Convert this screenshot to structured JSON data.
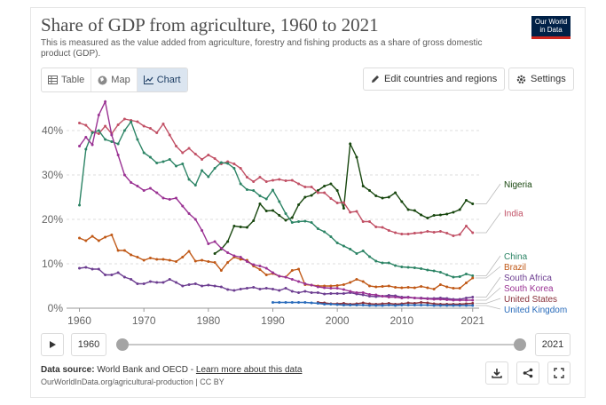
{
  "header": {
    "title": "Share of GDP from agriculture, 1960 to 2021",
    "subtitle": "This is measured as the value added from agriculture, forestry and fishing products as a share of gross domestic product (GDP).",
    "logo_line1": "Our World",
    "logo_line2": "in Data"
  },
  "tabs": [
    {
      "label": "Table",
      "icon": "table-icon"
    },
    {
      "label": "Map",
      "icon": "globe-icon"
    },
    {
      "label": "Chart",
      "icon": "line-chart-icon",
      "active": true
    }
  ],
  "buttons": {
    "edit_countries": "Edit countries and regions",
    "settings": "Settings"
  },
  "timeline": {
    "start_year": "1960",
    "end_year": "2021",
    "start_fraction": 0,
    "end_fraction": 1
  },
  "footer": {
    "source_label": "Data source:",
    "source_text": "World Bank and OECD",
    "separator": " - ",
    "learn_more": "Learn more about this data",
    "url_line": "OurWorldInData.org/agricultural-production | CC BY"
  },
  "colors": {
    "Nigeria": "#18470f",
    "India": "#c15065",
    "China": "#2c8465",
    "Brazil": "#c05917",
    "South Africa": "#6d3e91",
    "South Korea": "#9a3293",
    "United States": "#883039",
    "United Kingdom": "#286bbb"
  },
  "chart_data": {
    "type": "line",
    "title": "Share of GDP from agriculture, 1960 to 2021",
    "xlabel": "",
    "ylabel": "",
    "xlim": [
      1958,
      2022
    ],
    "ylim": [
      0,
      40
    ],
    "x_ticks": [
      1960,
      1970,
      1980,
      1990,
      2000,
      2010,
      2021
    ],
    "y_ticks": [
      0,
      10,
      20,
      30,
      40
    ],
    "y_tick_labels": [
      "0%",
      "10%",
      "20%",
      "30%",
      "40%"
    ],
    "grid": "horizontal dashed",
    "series": [
      {
        "name": "Nigeria",
        "label": "Nigeria",
        "x": [
          1981,
          1982,
          1983,
          1984,
          1985,
          1986,
          1987,
          1988,
          1989,
          1990,
          1991,
          1992,
          1993,
          1994,
          1995,
          1996,
          1997,
          1998,
          1999,
          2000,
          2001,
          2002,
          2003,
          2004,
          2005,
          2006,
          2007,
          2008,
          2009,
          2010,
          2011,
          2012,
          2013,
          2014,
          2015,
          2016,
          2017,
          2018,
          2019,
          2020,
          2021
        ],
        "values": [
          12.3,
          13.3,
          15.0,
          18.5,
          18.3,
          18.2,
          19.7,
          23.5,
          21.9,
          22.0,
          20.9,
          19.8,
          20.4,
          23.3,
          25.0,
          25.4,
          26.5,
          27.5,
          28.0,
          26.5,
          22.5,
          37.0,
          34.0,
          27.5,
          26.5,
          25.3,
          24.8,
          25.0,
          26.0,
          24.0,
          22.2,
          22.0,
          21.0,
          20.3,
          20.9,
          21.0,
          21.2,
          21.6,
          22.2,
          24.3,
          23.5
        ]
      },
      {
        "name": "India",
        "label": "India",
        "x": [
          1960,
          1961,
          1962,
          1963,
          1964,
          1965,
          1966,
          1967,
          1968,
          1969,
          1970,
          1971,
          1972,
          1973,
          1974,
          1975,
          1976,
          1977,
          1978,
          1979,
          1980,
          1981,
          1982,
          1983,
          1984,
          1985,
          1986,
          1987,
          1988,
          1989,
          1990,
          1991,
          1992,
          1993,
          1994,
          1995,
          1996,
          1997,
          1998,
          1999,
          2000,
          2001,
          2002,
          2003,
          2004,
          2005,
          2006,
          2007,
          2008,
          2009,
          2010,
          2011,
          2012,
          2013,
          2014,
          2015,
          2016,
          2017,
          2018,
          2019,
          2020,
          2021
        ],
        "values": [
          41.7,
          41.2,
          39.7,
          39.3,
          41.0,
          39.3,
          41.3,
          42.6,
          42.3,
          42.0,
          41.0,
          40.5,
          39.5,
          41.5,
          39.0,
          36.5,
          35.0,
          36.0,
          34.7,
          33.5,
          34.5,
          33.7,
          32.5,
          33.0,
          32.5,
          31.5,
          29.5,
          28.5,
          29.5,
          28.5,
          28.8,
          29.0,
          28.7,
          28.8,
          28.0,
          27.3,
          27.3,
          26.0,
          26.0,
          24.7,
          23.7,
          23.8,
          21.6,
          21.8,
          19.5,
          19.5,
          18.3,
          18.2,
          17.5,
          17.0,
          16.7,
          16.7,
          16.9,
          17.0,
          17.3,
          17.1,
          17.3,
          16.9,
          16.3,
          16.6,
          18.5,
          17.0
        ]
      },
      {
        "name": "China",
        "label": "China",
        "x": [
          1960,
          1961,
          1962,
          1963,
          1964,
          1965,
          1966,
          1967,
          1968,
          1969,
          1970,
          1971,
          1972,
          1973,
          1974,
          1975,
          1976,
          1977,
          1978,
          1979,
          1980,
          1981,
          1982,
          1983,
          1984,
          1985,
          1986,
          1987,
          1988,
          1989,
          1990,
          1991,
          1992,
          1993,
          1994,
          1995,
          1996,
          1997,
          1998,
          1999,
          2000,
          2001,
          2002,
          2003,
          2004,
          2005,
          2006,
          2007,
          2008,
          2009,
          2010,
          2011,
          2012,
          2013,
          2014,
          2015,
          2016,
          2017,
          2018,
          2019,
          2020,
          2021
        ],
        "values": [
          23.2,
          35.8,
          39.5,
          40.0,
          38.0,
          37.5,
          37.0,
          40.0,
          42.0,
          38.0,
          35.0,
          34.0,
          32.7,
          33.0,
          33.5,
          32.0,
          32.5,
          29.0,
          27.7,
          31.0,
          29.6,
          31.5,
          32.8,
          32.6,
          31.5,
          28.0,
          26.7,
          26.5,
          25.3,
          24.6,
          26.6,
          24.0,
          21.3,
          19.3,
          19.5,
          19.6,
          19.3,
          17.9,
          17.2,
          16.1,
          14.7,
          14.0,
          13.3,
          12.3,
          12.9,
          11.6,
          10.6,
          10.2,
          10.2,
          9.6,
          9.3,
          9.2,
          9.1,
          8.9,
          8.6,
          8.4,
          8.1,
          7.5,
          7.0,
          7.1,
          7.7,
          7.3
        ]
      },
      {
        "name": "Brazil",
        "label": "Brazil",
        "x": [
          1960,
          1961,
          1962,
          1963,
          1964,
          1965,
          1966,
          1967,
          1968,
          1969,
          1970,
          1971,
          1972,
          1973,
          1974,
          1975,
          1976,
          1977,
          1978,
          1979,
          1980,
          1981,
          1982,
          1983,
          1984,
          1985,
          1986,
          1987,
          1988,
          1989,
          1990,
          1991,
          1992,
          1993,
          1994,
          1995,
          1996,
          1997,
          1998,
          1999,
          2000,
          2001,
          2002,
          2003,
          2004,
          2005,
          2006,
          2007,
          2008,
          2009,
          2010,
          2011,
          2012,
          2013,
          2014,
          2015,
          2016,
          2017,
          2018,
          2019,
          2020,
          2021
        ],
        "values": [
          15.8,
          15.2,
          16.2,
          15.2,
          16.0,
          16.5,
          13.0,
          13.0,
          12.0,
          11.5,
          10.8,
          11.3,
          11.0,
          11.0,
          10.8,
          10.5,
          11.5,
          12.8,
          10.6,
          10.8,
          10.5,
          10.3,
          8.5,
          10.3,
          11.5,
          11.0,
          10.8,
          9.5,
          8.7,
          7.5,
          7.8,
          7.2,
          7.0,
          8.5,
          8.8,
          5.3,
          5.2,
          5.0,
          5.0,
          5.0,
          5.1,
          5.3,
          5.8,
          6.5,
          6.0,
          5.0,
          4.8,
          4.9,
          5.0,
          4.7,
          4.6,
          4.7,
          4.6,
          4.9,
          4.6,
          4.3,
          5.3,
          4.8,
          4.5,
          4.5,
          5.7,
          6.8
        ]
      },
      {
        "name": "South Africa",
        "label": "South Africa",
        "x": [
          1960,
          1961,
          1962,
          1963,
          1964,
          1965,
          1966,
          1967,
          1968,
          1969,
          1970,
          1971,
          1972,
          1973,
          1974,
          1975,
          1976,
          1977,
          1978,
          1979,
          1980,
          1981,
          1982,
          1983,
          1984,
          1985,
          1986,
          1987,
          1988,
          1989,
          1990,
          1991,
          1992,
          1993,
          1994,
          1995,
          1996,
          1997,
          1998,
          1999,
          2000,
          2001,
          2002,
          2003,
          2004,
          2005,
          2006,
          2007,
          2008,
          2009,
          2010,
          2011,
          2012,
          2013,
          2014,
          2015,
          2016,
          2017,
          2018,
          2019,
          2020,
          2021
        ],
        "values": [
          9.0,
          9.2,
          8.8,
          8.8,
          7.5,
          7.5,
          8.0,
          7.0,
          6.5,
          5.5,
          5.5,
          6.0,
          5.8,
          5.8,
          6.5,
          5.8,
          5.0,
          5.3,
          5.5,
          5.0,
          5.2,
          5.0,
          4.8,
          4.2,
          4.0,
          4.3,
          4.5,
          4.7,
          4.3,
          4.5,
          4.3,
          4.0,
          4.5,
          3.8,
          3.5,
          3.8,
          3.5,
          3.5,
          3.2,
          3.3,
          3.3,
          3.3,
          3.5,
          3.2,
          3.0,
          2.7,
          2.6,
          2.7,
          2.9,
          2.8,
          2.5,
          2.5,
          2.3,
          2.3,
          2.2,
          2.2,
          2.3,
          2.2,
          2.0,
          2.0,
          2.3,
          2.5
        ]
      },
      {
        "name": "South Korea",
        "label": "South Korea",
        "x": [
          1960,
          1961,
          1962,
          1963,
          1964,
          1965,
          1966,
          1967,
          1968,
          1969,
          1970,
          1971,
          1972,
          1973,
          1974,
          1975,
          1976,
          1977,
          1978,
          1979,
          1980,
          1981,
          1982,
          1983,
          1984,
          1985,
          1986,
          1987,
          1988,
          1989,
          1990,
          1991,
          1992,
          1993,
          1994,
          1995,
          1996,
          1997,
          1998,
          1999,
          2000,
          2001,
          2002,
          2003,
          2004,
          2005,
          2006,
          2007,
          2008,
          2009,
          2010,
          2011,
          2012,
          2013,
          2014,
          2015,
          2016,
          2017,
          2018,
          2019,
          2020,
          2021
        ],
        "values": [
          36.5,
          38.5,
          36.8,
          43.5,
          46.5,
          39.0,
          34.5,
          30.0,
          28.3,
          27.5,
          26.5,
          27.0,
          26.0,
          24.8,
          24.5,
          24.8,
          23.0,
          21.3,
          20.0,
          17.5,
          14.5,
          15.0,
          13.5,
          12.5,
          11.8,
          11.5,
          10.5,
          9.8,
          9.5,
          9.0,
          8.0,
          7.2,
          7.0,
          6.5,
          6.0,
          5.5,
          5.2,
          4.8,
          4.6,
          4.5,
          4.5,
          4.2,
          3.8,
          3.5,
          3.5,
          3.1,
          3.0,
          2.7,
          2.5,
          2.5,
          2.3,
          2.4,
          2.3,
          2.2,
          2.1,
          2.0,
          2.0,
          1.9,
          1.8,
          1.8,
          1.8,
          1.8
        ]
      },
      {
        "name": "United States",
        "label": "United States",
        "x": [
          1997,
          1998,
          1999,
          2000,
          2001,
          2002,
          2003,
          2004,
          2005,
          2006,
          2007,
          2008,
          2009,
          2010,
          2011,
          2012,
          2013,
          2014,
          2015,
          2016,
          2017,
          2018,
          2019,
          2020,
          2021
        ],
        "values": [
          1.3,
          1.2,
          1.0,
          1.0,
          1.1,
          0.9,
          1.0,
          1.2,
          1.0,
          0.9,
          1.0,
          1.1,
          0.9,
          1.0,
          1.2,
          1.1,
          1.3,
          1.2,
          1.0,
          0.9,
          0.9,
          0.9,
          0.9,
          1.0,
          1.1
        ]
      },
      {
        "name": "United Kingdom",
        "label": "United Kingdom",
        "x": [
          1990,
          1991,
          1992,
          1993,
          1994,
          1995,
          1996,
          1997,
          1998,
          1999,
          2000,
          2001,
          2002,
          2003,
          2004,
          2005,
          2006,
          2007,
          2008,
          2009,
          2010,
          2011,
          2012,
          2013,
          2014,
          2015,
          2016,
          2017,
          2018,
          2019,
          2020,
          2021
        ],
        "values": [
          1.3,
          1.3,
          1.3,
          1.3,
          1.3,
          1.3,
          1.2,
          1.1,
          0.9,
          0.9,
          0.8,
          0.7,
          0.7,
          0.7,
          0.7,
          0.6,
          0.6,
          0.6,
          0.7,
          0.6,
          0.7,
          0.7,
          0.7,
          0.7,
          0.7,
          0.6,
          0.6,
          0.6,
          0.6,
          0.6,
          0.6,
          0.6
        ]
      }
    ]
  }
}
